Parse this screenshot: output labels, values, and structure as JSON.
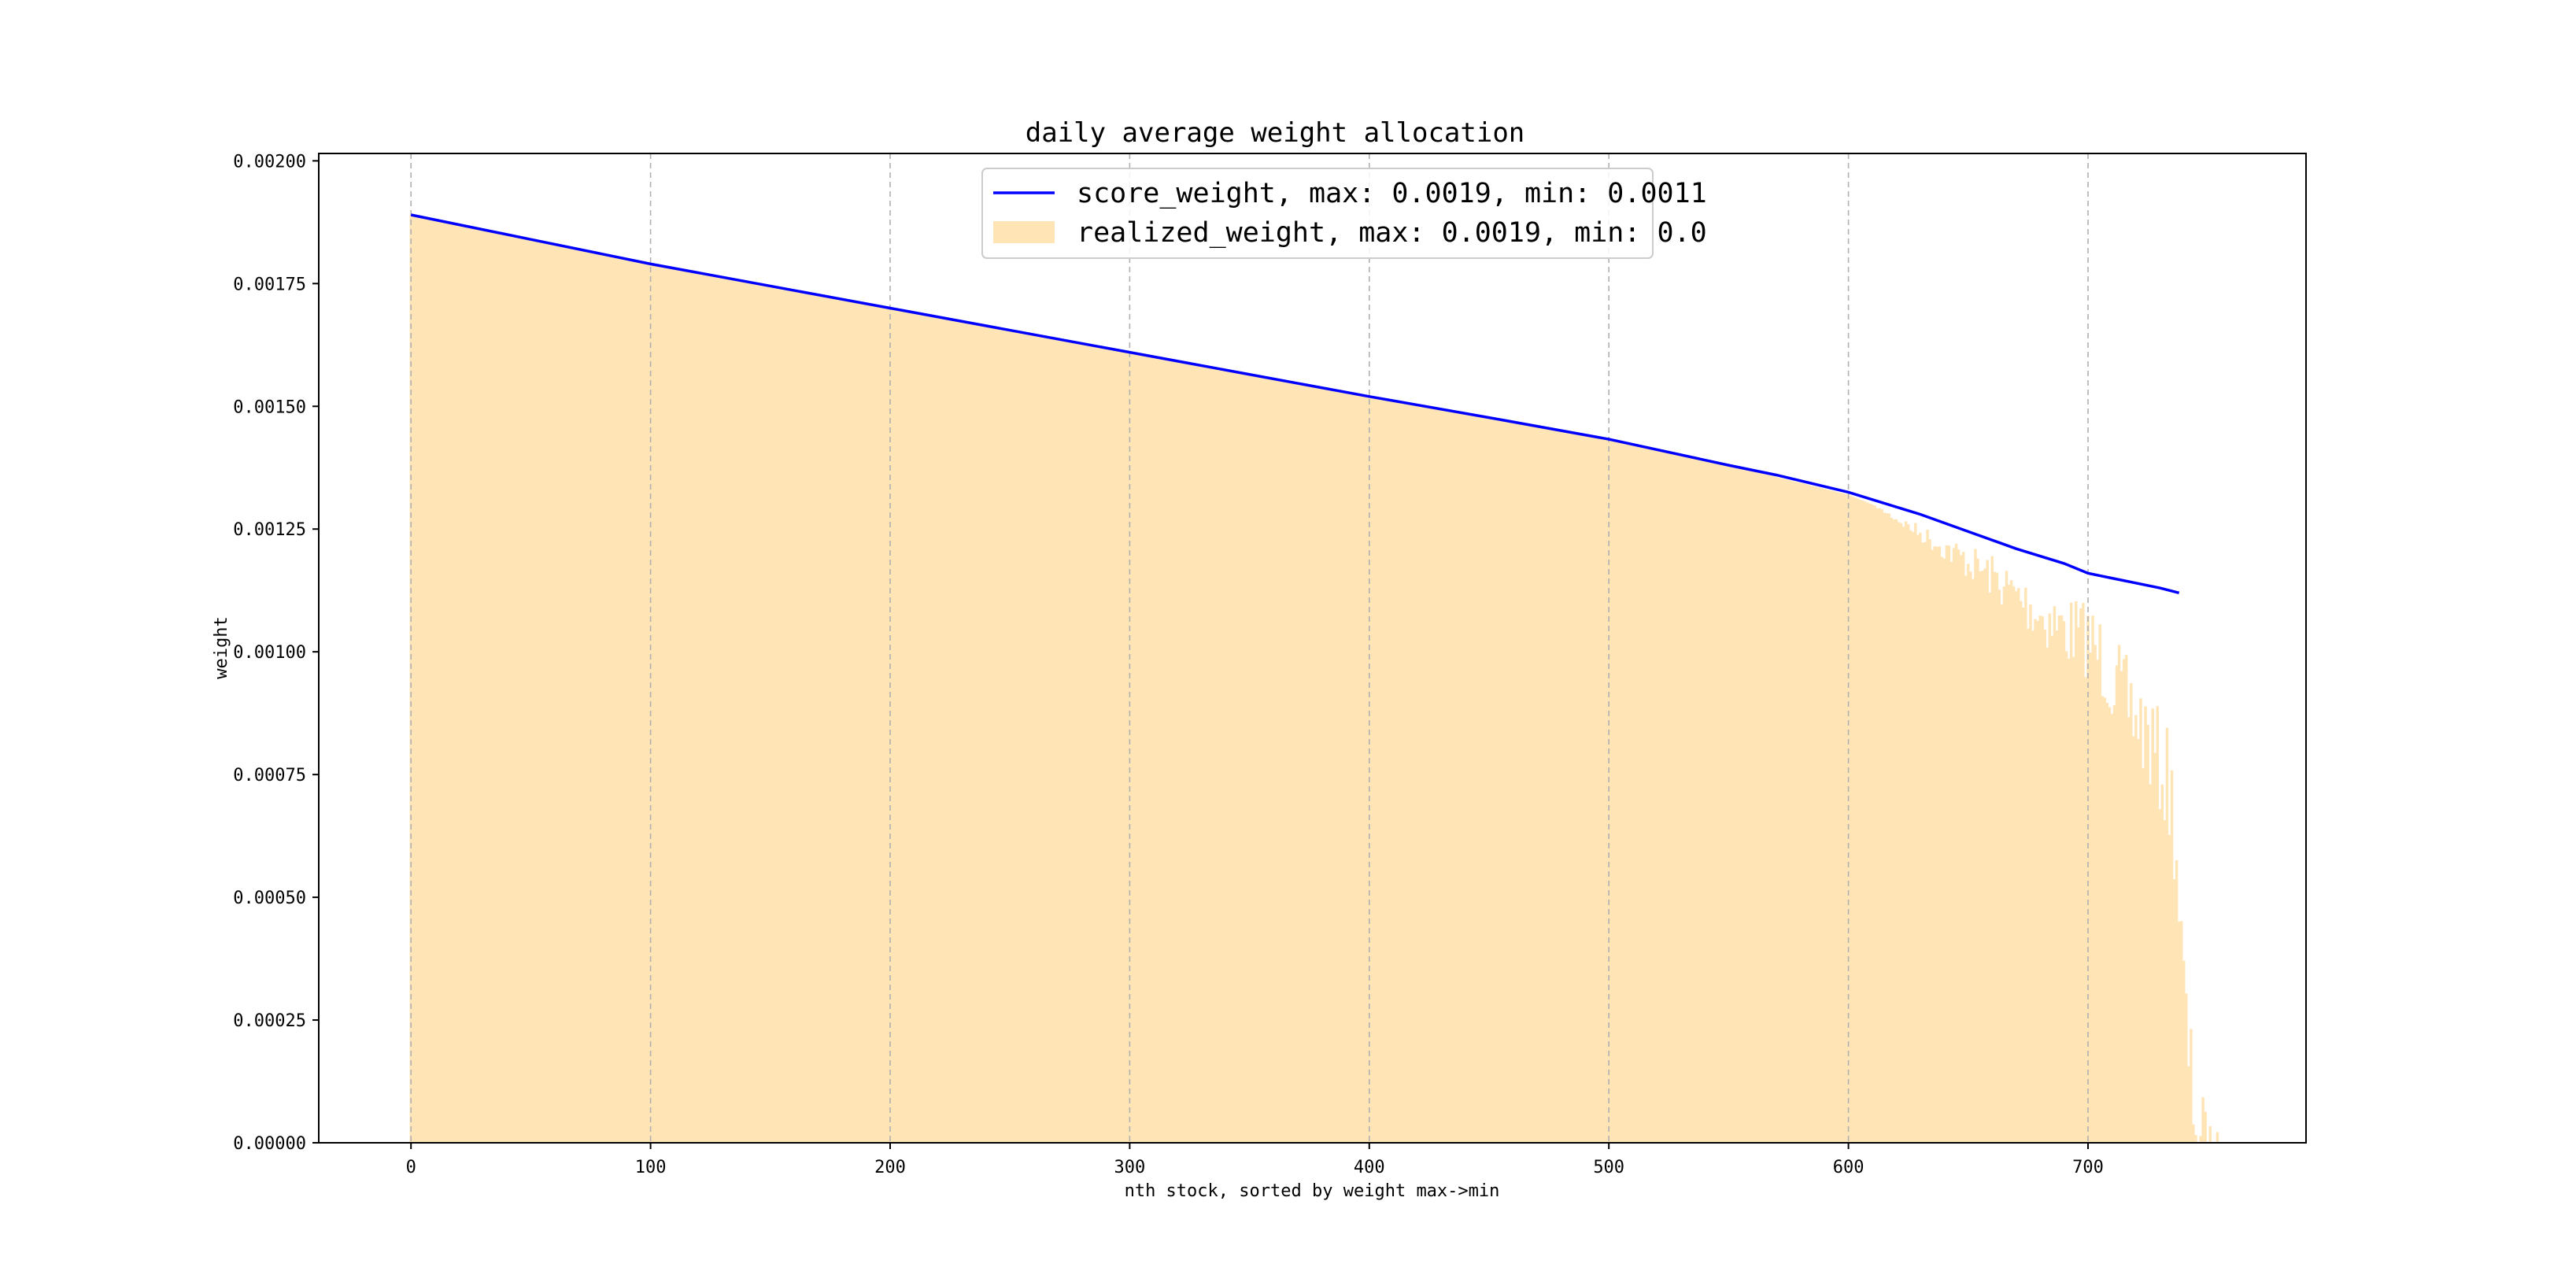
{
  "chart_data": {
    "type": "line",
    "title": "daily average weight allocation",
    "xlabel": "nth stock, sorted by weight max->min",
    "ylabel": "weight",
    "xlim": [
      -38.5,
      791
    ],
    "ylim": [
      0,
      0.002015
    ],
    "x_ticks": [
      0,
      100,
      200,
      300,
      400,
      500,
      600,
      700
    ],
    "x_tick_labels": [
      "0",
      "100",
      "200",
      "300",
      "400",
      "500",
      "600",
      "700"
    ],
    "y_ticks": [
      0,
      0.00025,
      0.0005,
      0.00075,
      0.001,
      0.00125,
      0.0015,
      0.00175,
      0.002
    ],
    "y_tick_labels": [
      "0.00000",
      "0.00025",
      "0.00050",
      "0.00075",
      "0.00100",
      "0.00125",
      "0.00150",
      "0.00175",
      "0.00200"
    ],
    "grid": {
      "x": true,
      "y": false,
      "style": "dashed"
    },
    "legend_position": "upper-center",
    "series": [
      {
        "name": "score_weight, max: 0.0019, min: 0.0011",
        "kind": "line",
        "color": "#0000ff",
        "x": [
          0,
          50,
          100,
          150,
          200,
          250,
          300,
          350,
          400,
          450,
          500,
          550,
          570,
          600,
          630,
          650,
          670,
          690,
          700,
          710,
          720,
          730,
          738
        ],
        "y": [
          0.00189,
          0.00184,
          0.00179,
          0.001745,
          0.0017,
          0.001655,
          0.00161,
          0.001565,
          0.00152,
          0.001477,
          0.001433,
          0.00138,
          0.00136,
          0.001325,
          0.00128,
          0.001245,
          0.00121,
          0.00118,
          0.00116,
          0.00115,
          0.00114,
          0.00113,
          0.00112
        ]
      },
      {
        "name": "realized_weight, max: 0.0019, min: 0.0",
        "kind": "bar",
        "color": "#ffe4b5",
        "x": [
          0,
          100,
          200,
          300,
          400,
          500,
          550,
          600,
          620,
          640,
          660,
          670,
          680,
          690,
          700,
          705,
          710,
          715,
          720,
          725,
          730,
          733,
          735,
          737,
          738,
          740,
          742,
          745,
          748,
          752,
          756
        ],
        "y": [
          0.00189,
          0.00179,
          0.0017,
          0.00161,
          0.00152,
          0.001433,
          0.00138,
          0.00132,
          0.00128,
          0.00124,
          0.0012,
          0.00117,
          0.00114,
          0.00112,
          0.00111,
          0.00108,
          0.00104,
          0.001,
          0.00097,
          0.00093,
          0.00088,
          0.00085,
          0.0008,
          0.0007,
          0.0006,
          0.00042,
          0.00028,
          0.00017,
          0.0001,
          5e-05,
          1e-05
        ]
      }
    ]
  }
}
